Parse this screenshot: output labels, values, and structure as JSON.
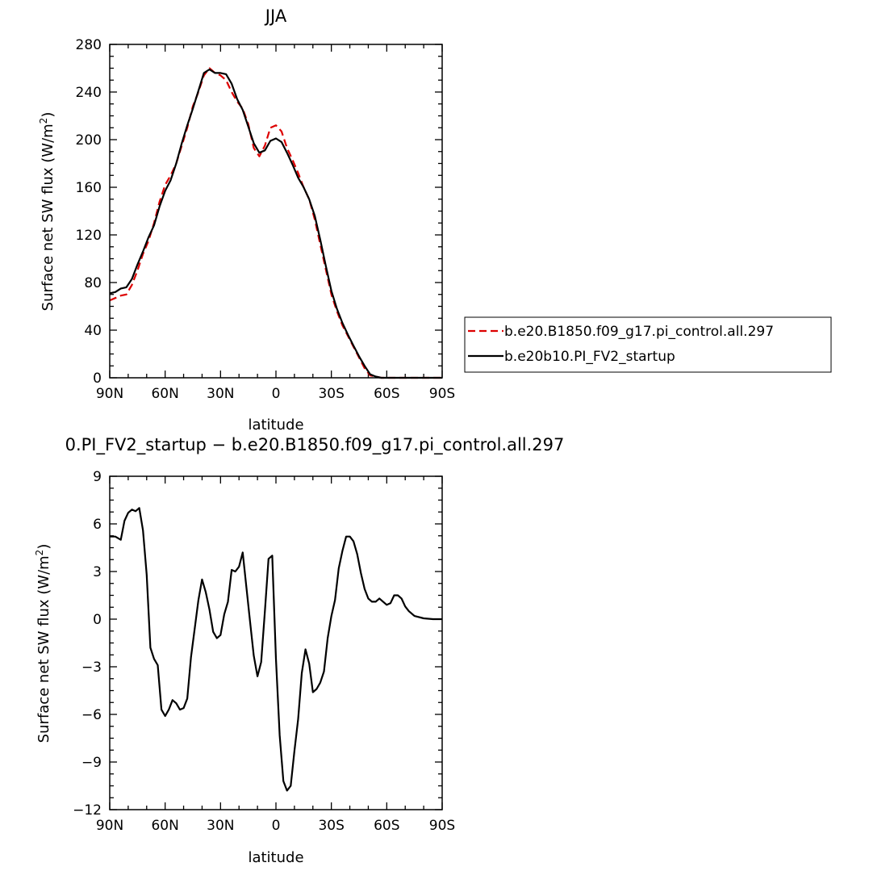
{
  "chart_data": [
    {
      "type": "line",
      "title": "JJA",
      "xlabel": "latitude",
      "ylabel": "Surface net SW flux (W/m²)",
      "ylabel_main": "Surface net SW flux (W/m",
      "ylabel_sup": "2",
      "ylabel_end": ")",
      "xlim": [
        90,
        -90
      ],
      "ylim": [
        0,
        280
      ],
      "xticks": [
        {
          "value": 90,
          "label": "90N"
        },
        {
          "value": 60,
          "label": "60N"
        },
        {
          "value": 30,
          "label": "30N"
        },
        {
          "value": 0,
          "label": "0"
        },
        {
          "value": -30,
          "label": "30S"
        },
        {
          "value": -60,
          "label": "60S"
        },
        {
          "value": -90,
          "label": "90S"
        }
      ],
      "yticks": [
        0,
        40,
        80,
        120,
        160,
        200,
        240,
        280
      ],
      "legend_position": "right",
      "series": [
        {
          "name": "b.e20.B1850.f09_g17.pi_control.all.297",
          "color": "#dd0000",
          "dash": true,
          "x": [
            90,
            87,
            84,
            81,
            78,
            75,
            72,
            69,
            66,
            63,
            60,
            57,
            54,
            51,
            48,
            45,
            42,
            39,
            36,
            33,
            30,
            27,
            24,
            21,
            18,
            15,
            12,
            9,
            6,
            3,
            0,
            -3,
            -6,
            -9,
            -12,
            -15,
            -18,
            -21,
            -24,
            -27,
            -30,
            -33,
            -36,
            -39,
            -42,
            -45,
            -48,
            -51,
            -54,
            -57,
            -60,
            -63,
            -66,
            -69,
            -72,
            -75,
            -78,
            -81,
            -84,
            -87,
            -90
          ],
          "y": [
            65,
            67,
            69,
            70,
            78,
            90,
            104,
            115,
            130,
            148,
            162,
            170,
            180,
            195,
            210,
            228,
            240,
            254,
            260,
            256,
            254,
            250,
            240,
            232,
            226,
            213,
            193,
            186,
            195,
            210,
            212,
            207,
            193,
            183,
            172,
            160,
            150,
            133,
            112,
            91,
            70,
            56,
            44,
            35,
            26,
            17,
            8,
            2,
            1,
            0,
            0,
            0,
            0,
            0,
            0,
            0,
            0,
            0,
            0,
            0,
            0
          ]
        },
        {
          "name": "b.e20b10.PI_FV2_startup",
          "color": "#000000",
          "dash": false,
          "x": [
            90,
            87,
            84,
            81,
            78,
            75,
            72,
            69,
            66,
            63,
            60,
            57,
            54,
            51,
            48,
            45,
            42,
            39,
            36,
            33,
            30,
            27,
            24,
            21,
            18,
            15,
            12,
            9,
            6,
            3,
            0,
            -3,
            -6,
            -9,
            -12,
            -15,
            -18,
            -21,
            -24,
            -27,
            -30,
            -33,
            -36,
            -39,
            -42,
            -45,
            -48,
            -51,
            -54,
            -57,
            -60,
            -63,
            -66,
            -69,
            -72,
            -75,
            -78,
            -81,
            -84,
            -87,
            -90
          ],
          "y": [
            71,
            72,
            75,
            76,
            83,
            95,
            106,
            118,
            128,
            144,
            157,
            166,
            180,
            197,
            212,
            226,
            241,
            256,
            259,
            256,
            256,
            255,
            247,
            234,
            225,
            211,
            197,
            189,
            191,
            199,
            201,
            198,
            189,
            179,
            168,
            160,
            150,
            136,
            116,
            94,
            73,
            58,
            46,
            36,
            27,
            18,
            10,
            3,
            1,
            0,
            0,
            0,
            0,
            0,
            0,
            0,
            0,
            0,
            0,
            0,
            0
          ]
        }
      ]
    },
    {
      "type": "line",
      "title": "0.PI_FV2_startup − b.e20.B1850.f09_g17.pi_control.all.297",
      "xlabel": "latitude",
      "ylabel": "Surface net SW flux (W/m²)",
      "ylabel_main": "Surface net SW flux (W/m",
      "ylabel_sup": "2",
      "ylabel_end": ")",
      "xlim": [
        90,
        -90
      ],
      "ylim": [
        -12,
        9
      ],
      "xticks": [
        {
          "value": 90,
          "label": "90N"
        },
        {
          "value": 60,
          "label": "60N"
        },
        {
          "value": 30,
          "label": "30N"
        },
        {
          "value": 0,
          "label": "0"
        },
        {
          "value": -30,
          "label": "30S"
        },
        {
          "value": -60,
          "label": "60S"
        },
        {
          "value": -90,
          "label": "90S"
        }
      ],
      "yticks": [
        -12,
        -9,
        -6,
        -3,
        0,
        3,
        6,
        9
      ],
      "series": [
        {
          "color": "#000000",
          "dash": false,
          "x": [
            90,
            87,
            84,
            82,
            80,
            78,
            76,
            74,
            72,
            70,
            68,
            66,
            64,
            62,
            60,
            58,
            56,
            54,
            52,
            50,
            48,
            46,
            44,
            42,
            40,
            38,
            36,
            34,
            32,
            30,
            28,
            26,
            24,
            22,
            20,
            18,
            16,
            14,
            12,
            10,
            8,
            6,
            4,
            2,
            0,
            -2,
            -4,
            -6,
            -8,
            -10,
            -12,
            -14,
            -16,
            -18,
            -20,
            -22,
            -24,
            -26,
            -28,
            -30,
            -32,
            -34,
            -36,
            -38,
            -40,
            -42,
            -44,
            -46,
            -48,
            -50,
            -52,
            -54,
            -56,
            -58,
            -60,
            -62,
            -64,
            -66,
            -68,
            -70,
            -72,
            -75,
            -80,
            -85,
            -90
          ],
          "y": [
            5.2,
            5.2,
            5.0,
            6.2,
            6.7,
            6.9,
            6.8,
            7.0,
            5.6,
            2.8,
            -1.8,
            -2.5,
            -2.9,
            -5.7,
            -6.1,
            -5.7,
            -5.1,
            -5.3,
            -5.7,
            -5.6,
            -5.0,
            -2.4,
            -0.6,
            1.2,
            2.5,
            1.7,
            0.6,
            -0.8,
            -1.2,
            -1.0,
            0.3,
            1.1,
            3.1,
            3.0,
            3.3,
            4.2,
            2.0,
            -0.2,
            -2.3,
            -3.6,
            -2.7,
            0.5,
            3.8,
            4.0,
            -2.5,
            -7.3,
            -10.2,
            -10.8,
            -10.5,
            -8.3,
            -6.3,
            -3.4,
            -1.9,
            -2.8,
            -4.6,
            -4.4,
            -4.0,
            -3.3,
            -1.2,
            0.2,
            1.2,
            3.2,
            4.3,
            5.2,
            5.2,
            4.9,
            4.1,
            2.9,
            1.9,
            1.3,
            1.1,
            1.1,
            1.3,
            1.1,
            0.9,
            1.0,
            1.5,
            1.5,
            1.3,
            0.8,
            0.5,
            0.2,
            0.05,
            0.0,
            0.0
          ]
        }
      ]
    }
  ]
}
